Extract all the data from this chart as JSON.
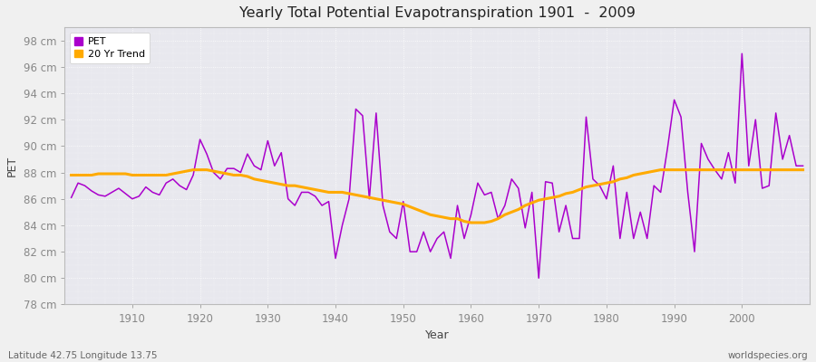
{
  "title": "Yearly Total Potential Evapotranspiration 1901  -  2009",
  "xlabel": "Year",
  "ylabel": "PET",
  "bottom_left_text": "Latitude 42.75 Longitude 13.75",
  "bottom_right_text": "worldspecies.org",
  "pet_color": "#aa00cc",
  "trend_color": "#ffaa00",
  "fig_bg_color": "#f0f0f0",
  "plot_bg_color": "#e8e8ee",
  "ylim": [
    78,
    99
  ],
  "xlim": [
    1900,
    2010
  ],
  "ytick_labels": [
    "78 cm",
    "80 cm",
    "82 cm",
    "84 cm",
    "86 cm",
    "88 cm",
    "90 cm",
    "92 cm",
    "94 cm",
    "96 cm",
    "98 cm"
  ],
  "ytick_values": [
    78,
    80,
    82,
    84,
    86,
    88,
    90,
    92,
    94,
    96,
    98
  ],
  "xtick_values": [
    1910,
    1920,
    1930,
    1940,
    1950,
    1960,
    1970,
    1980,
    1990,
    2000
  ],
  "years": [
    1901,
    1902,
    1903,
    1904,
    1905,
    1906,
    1907,
    1908,
    1909,
    1910,
    1911,
    1912,
    1913,
    1914,
    1915,
    1916,
    1917,
    1918,
    1919,
    1920,
    1921,
    1922,
    1923,
    1924,
    1925,
    1926,
    1927,
    1928,
    1929,
    1930,
    1931,
    1932,
    1933,
    1934,
    1935,
    1936,
    1937,
    1938,
    1939,
    1940,
    1941,
    1942,
    1943,
    1944,
    1945,
    1946,
    1947,
    1948,
    1949,
    1950,
    1951,
    1952,
    1953,
    1954,
    1955,
    1956,
    1957,
    1958,
    1959,
    1960,
    1961,
    1962,
    1963,
    1964,
    1965,
    1966,
    1967,
    1968,
    1969,
    1970,
    1971,
    1972,
    1973,
    1974,
    1975,
    1976,
    1977,
    1978,
    1979,
    1980,
    1981,
    1982,
    1983,
    1984,
    1985,
    1986,
    1987,
    1988,
    1989,
    1990,
    1991,
    1992,
    1993,
    1994,
    1995,
    1996,
    1997,
    1998,
    1999,
    2000,
    2001,
    2002,
    2003,
    2004,
    2005,
    2006,
    2007,
    2008,
    2009
  ],
  "pet_values": [
    86.1,
    87.2,
    87.0,
    86.6,
    86.3,
    86.2,
    86.5,
    86.8,
    86.4,
    86.0,
    86.2,
    86.9,
    86.5,
    86.3,
    87.2,
    87.5,
    87.0,
    86.7,
    87.8,
    90.5,
    89.4,
    88.0,
    87.5,
    88.3,
    88.3,
    88.0,
    89.4,
    88.5,
    88.2,
    90.4,
    88.5,
    89.5,
    86.0,
    85.5,
    86.5,
    86.5,
    86.2,
    85.5,
    85.8,
    81.5,
    84.0,
    86.0,
    92.8,
    92.3,
    86.0,
    92.5,
    85.5,
    83.5,
    83.0,
    85.8,
    82.0,
    82.0,
    83.5,
    82.0,
    83.0,
    83.5,
    81.5,
    85.5,
    83.0,
    84.8,
    87.2,
    86.3,
    86.5,
    84.5,
    85.5,
    87.5,
    86.8,
    83.8,
    86.5,
    80.0,
    87.3,
    87.2,
    83.5,
    85.5,
    83.0,
    83.0,
    92.2,
    87.5,
    87.0,
    86.0,
    88.5,
    83.0,
    86.5,
    83.0,
    85.0,
    83.0,
    87.0,
    86.5,
    89.8,
    93.5,
    92.2,
    86.5,
    82.0,
    90.2,
    89.0,
    88.2,
    87.5,
    89.5,
    87.2,
    97.0,
    88.5,
    92.0,
    86.8,
    87.0,
    92.5,
    89.0,
    90.8,
    88.5,
    88.5
  ],
  "trend_values": [
    87.8,
    87.8,
    87.8,
    87.8,
    87.9,
    87.9,
    87.9,
    87.9,
    87.9,
    87.8,
    87.8,
    87.8,
    87.8,
    87.8,
    87.8,
    87.9,
    88.0,
    88.1,
    88.2,
    88.2,
    88.2,
    88.1,
    88.0,
    87.9,
    87.8,
    87.8,
    87.7,
    87.5,
    87.4,
    87.3,
    87.2,
    87.1,
    87.0,
    87.0,
    86.9,
    86.8,
    86.7,
    86.6,
    86.5,
    86.5,
    86.5,
    86.4,
    86.3,
    86.2,
    86.1,
    86.0,
    85.9,
    85.8,
    85.7,
    85.6,
    85.4,
    85.2,
    85.0,
    84.8,
    84.7,
    84.6,
    84.5,
    84.5,
    84.3,
    84.2,
    84.2,
    84.2,
    84.3,
    84.5,
    84.8,
    85.0,
    85.2,
    85.5,
    85.7,
    85.9,
    86.0,
    86.1,
    86.2,
    86.4,
    86.5,
    86.7,
    86.9,
    87.0,
    87.1,
    87.2,
    87.3,
    87.5,
    87.6,
    87.8,
    87.9,
    88.0,
    88.1,
    88.2,
    88.2,
    88.2,
    88.2,
    88.2,
    88.2,
    88.2,
    88.2,
    88.2,
    88.2,
    88.2,
    88.2,
    88.2,
    88.2,
    88.2,
    88.2,
    88.2,
    88.2,
    88.2,
    88.2,
    88.2,
    88.2
  ]
}
